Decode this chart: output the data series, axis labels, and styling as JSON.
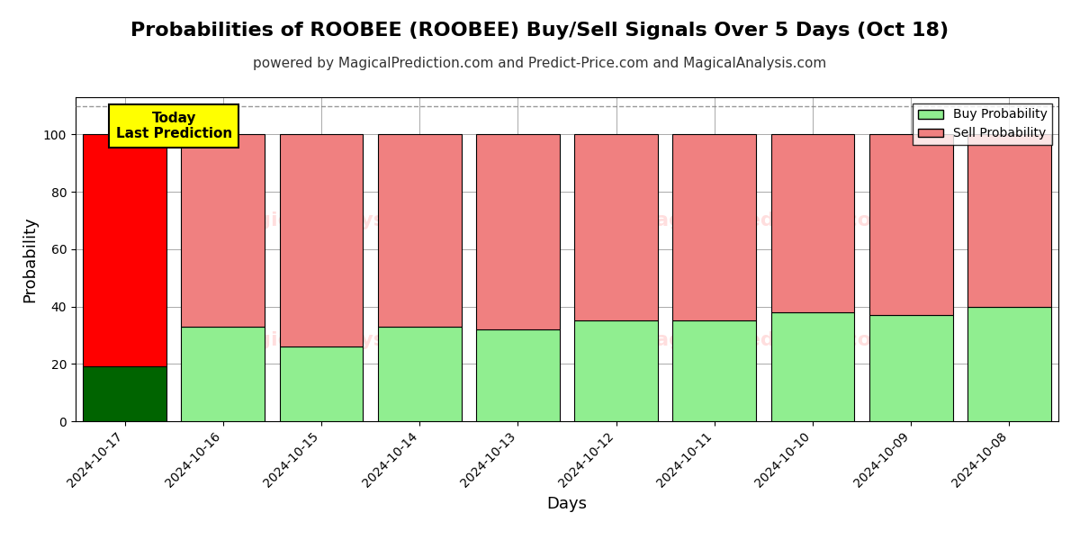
{
  "title": "Probabilities of ROOBEE (ROOBEE) Buy/Sell Signals Over 5 Days (Oct 18)",
  "subtitle": "powered by MagicalPrediction.com and Predict-Price.com and MagicalAnalysis.com",
  "xlabel": "Days",
  "ylabel": "Probability",
  "dates": [
    "2024-10-17",
    "2024-10-16",
    "2024-10-15",
    "2024-10-14",
    "2024-10-13",
    "2024-10-12",
    "2024-10-11",
    "2024-10-10",
    "2024-10-09",
    "2024-10-08"
  ],
  "buy_values": [
    19,
    33,
    26,
    33,
    32,
    35,
    35,
    38,
    37,
    40
  ],
  "sell_values": [
    81,
    67,
    74,
    67,
    68,
    65,
    65,
    62,
    63,
    60
  ],
  "buy_color_today": "#006400",
  "sell_color_today": "#ff0000",
  "buy_color_normal": "#90EE90",
  "sell_color_normal": "#F08080",
  "ylim": [
    0,
    113
  ],
  "yticks": [
    0,
    20,
    40,
    60,
    80,
    100
  ],
  "dashed_line_y": 110,
  "watermark_alpha": 0.13,
  "today_label_text": "Today\nLast Prediction",
  "today_label_bg": "#ffff00",
  "legend_buy": "Buy Probability",
  "legend_sell": "Sell Probability",
  "bar_edge_color": "#000000",
  "bar_linewidth": 0.8,
  "background_color": "#ffffff",
  "grid_color": "#aaaaaa",
  "title_fontsize": 16,
  "subtitle_fontsize": 11,
  "axis_label_fontsize": 13,
  "tick_fontsize": 10,
  "bar_width": 0.85
}
